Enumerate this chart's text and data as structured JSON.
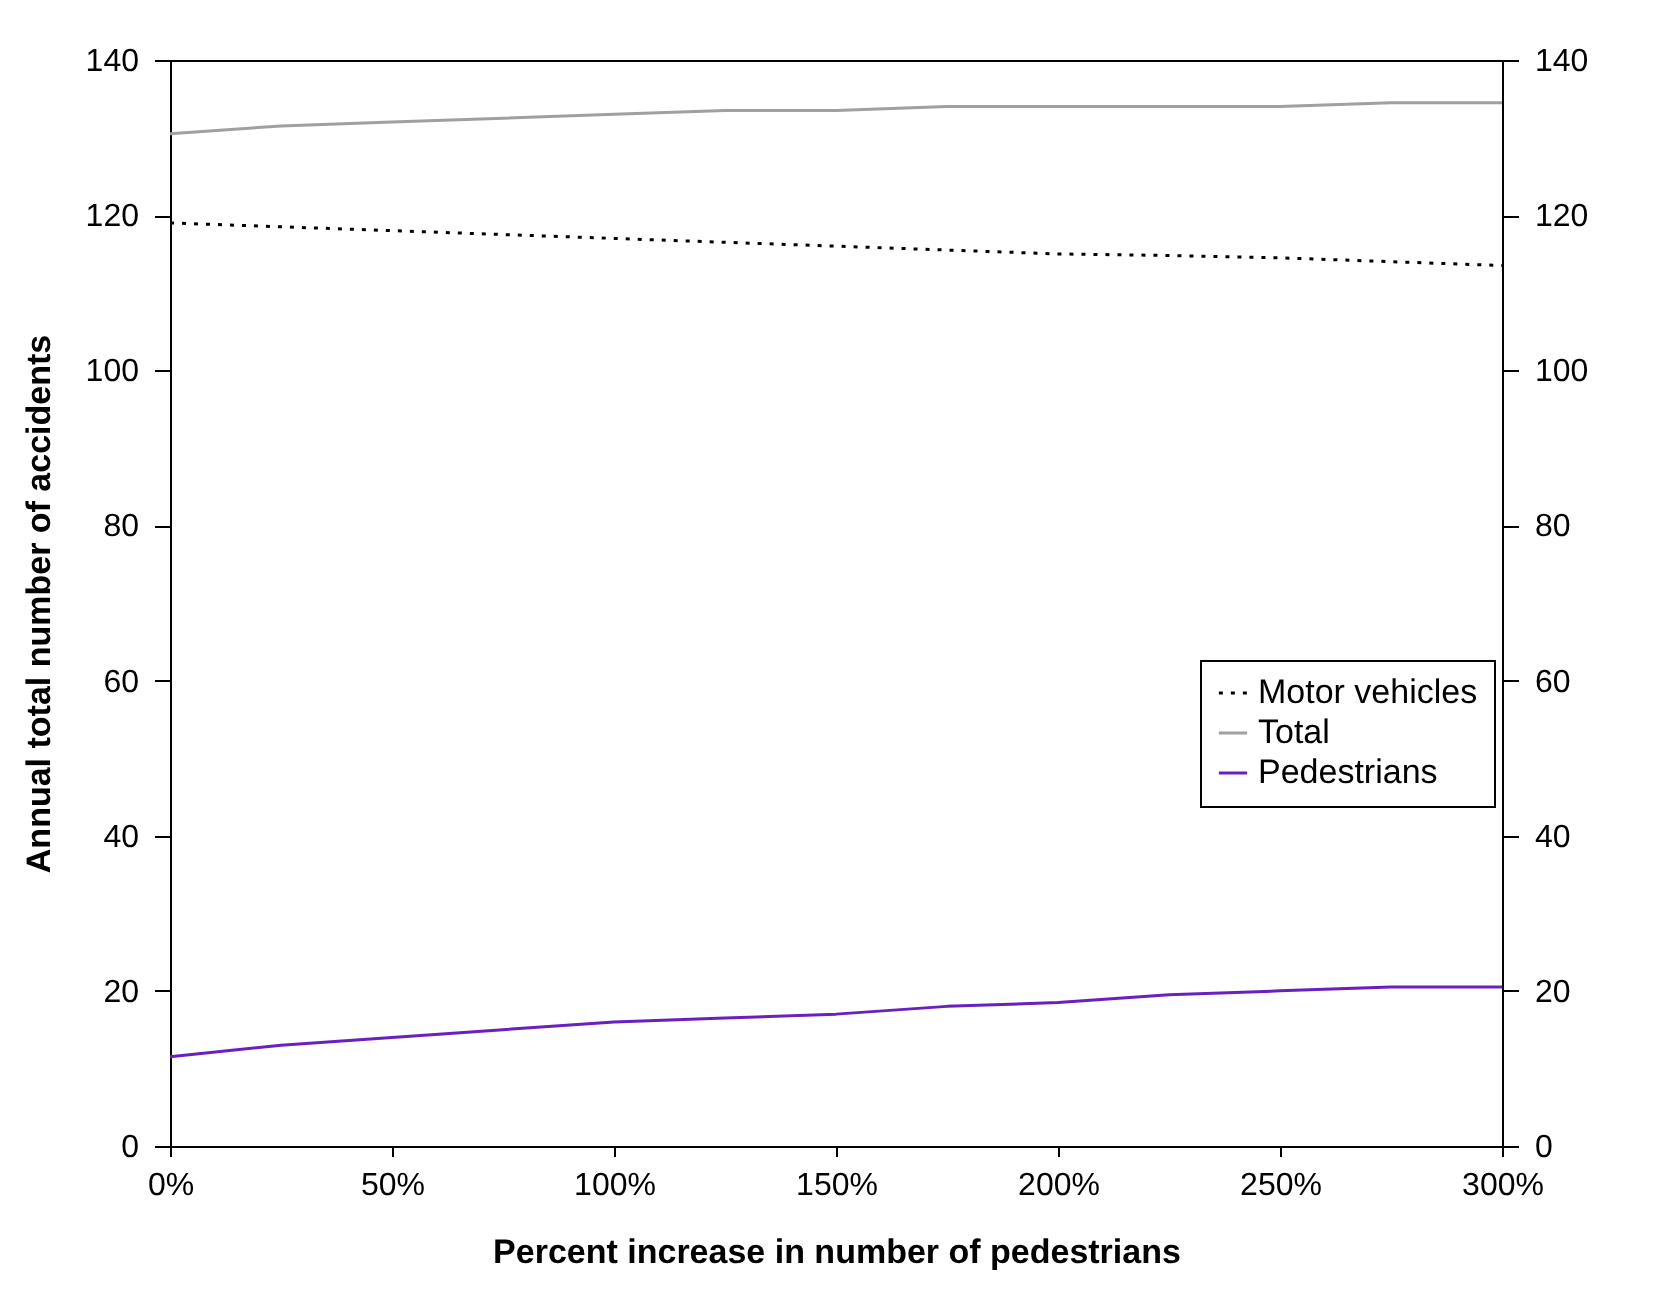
{
  "chart_data": {
    "type": "line",
    "xlabel": "Percent increase in number of pedestrians",
    "ylabel": "Annual total number of accidents",
    "x": [
      0,
      25,
      50,
      75,
      100,
      125,
      150,
      175,
      200,
      225,
      250,
      275,
      300
    ],
    "series": [
      {
        "name": "Motor vehicles",
        "color": "#000000",
        "line_style": "dotted",
        "values": [
          119,
          118.5,
          118,
          117.5,
          117,
          116.5,
          116,
          115.5,
          115,
          114.8,
          114.5,
          114,
          113.5
        ]
      },
      {
        "name": "Total",
        "color": "#a0a0a0",
        "line_style": "solid",
        "values": [
          130.5,
          131.5,
          132,
          132.5,
          133,
          133.5,
          133.5,
          134,
          134,
          134,
          134,
          134.5,
          134.5
        ]
      },
      {
        "name": "Pedestrians",
        "color": "#6a1fc0",
        "line_style": "solid",
        "values": [
          11.5,
          13,
          14,
          15,
          16,
          16.5,
          17,
          18,
          18.5,
          19.5,
          20,
          20.5,
          20.5
        ]
      }
    ],
    "xlim": [
      0,
      300
    ],
    "xticks": [
      {
        "value": 0,
        "label": "0%"
      },
      {
        "value": 50,
        "label": "50%"
      },
      {
        "value": 100,
        "label": "100%"
      },
      {
        "value": 150,
        "label": "150%"
      },
      {
        "value": 200,
        "label": "200%"
      },
      {
        "value": 250,
        "label": "250%"
      },
      {
        "value": 300,
        "label": "300%"
      }
    ],
    "ylim": [
      0,
      140
    ],
    "yticks": [
      0,
      20,
      40,
      60,
      80,
      100,
      120,
      140
    ],
    "y2lim": [
      0,
      140
    ],
    "y2ticks": [
      0,
      20,
      40,
      60,
      80,
      100,
      120,
      140
    ],
    "grid": false,
    "legend": "right",
    "marker": "none"
  }
}
